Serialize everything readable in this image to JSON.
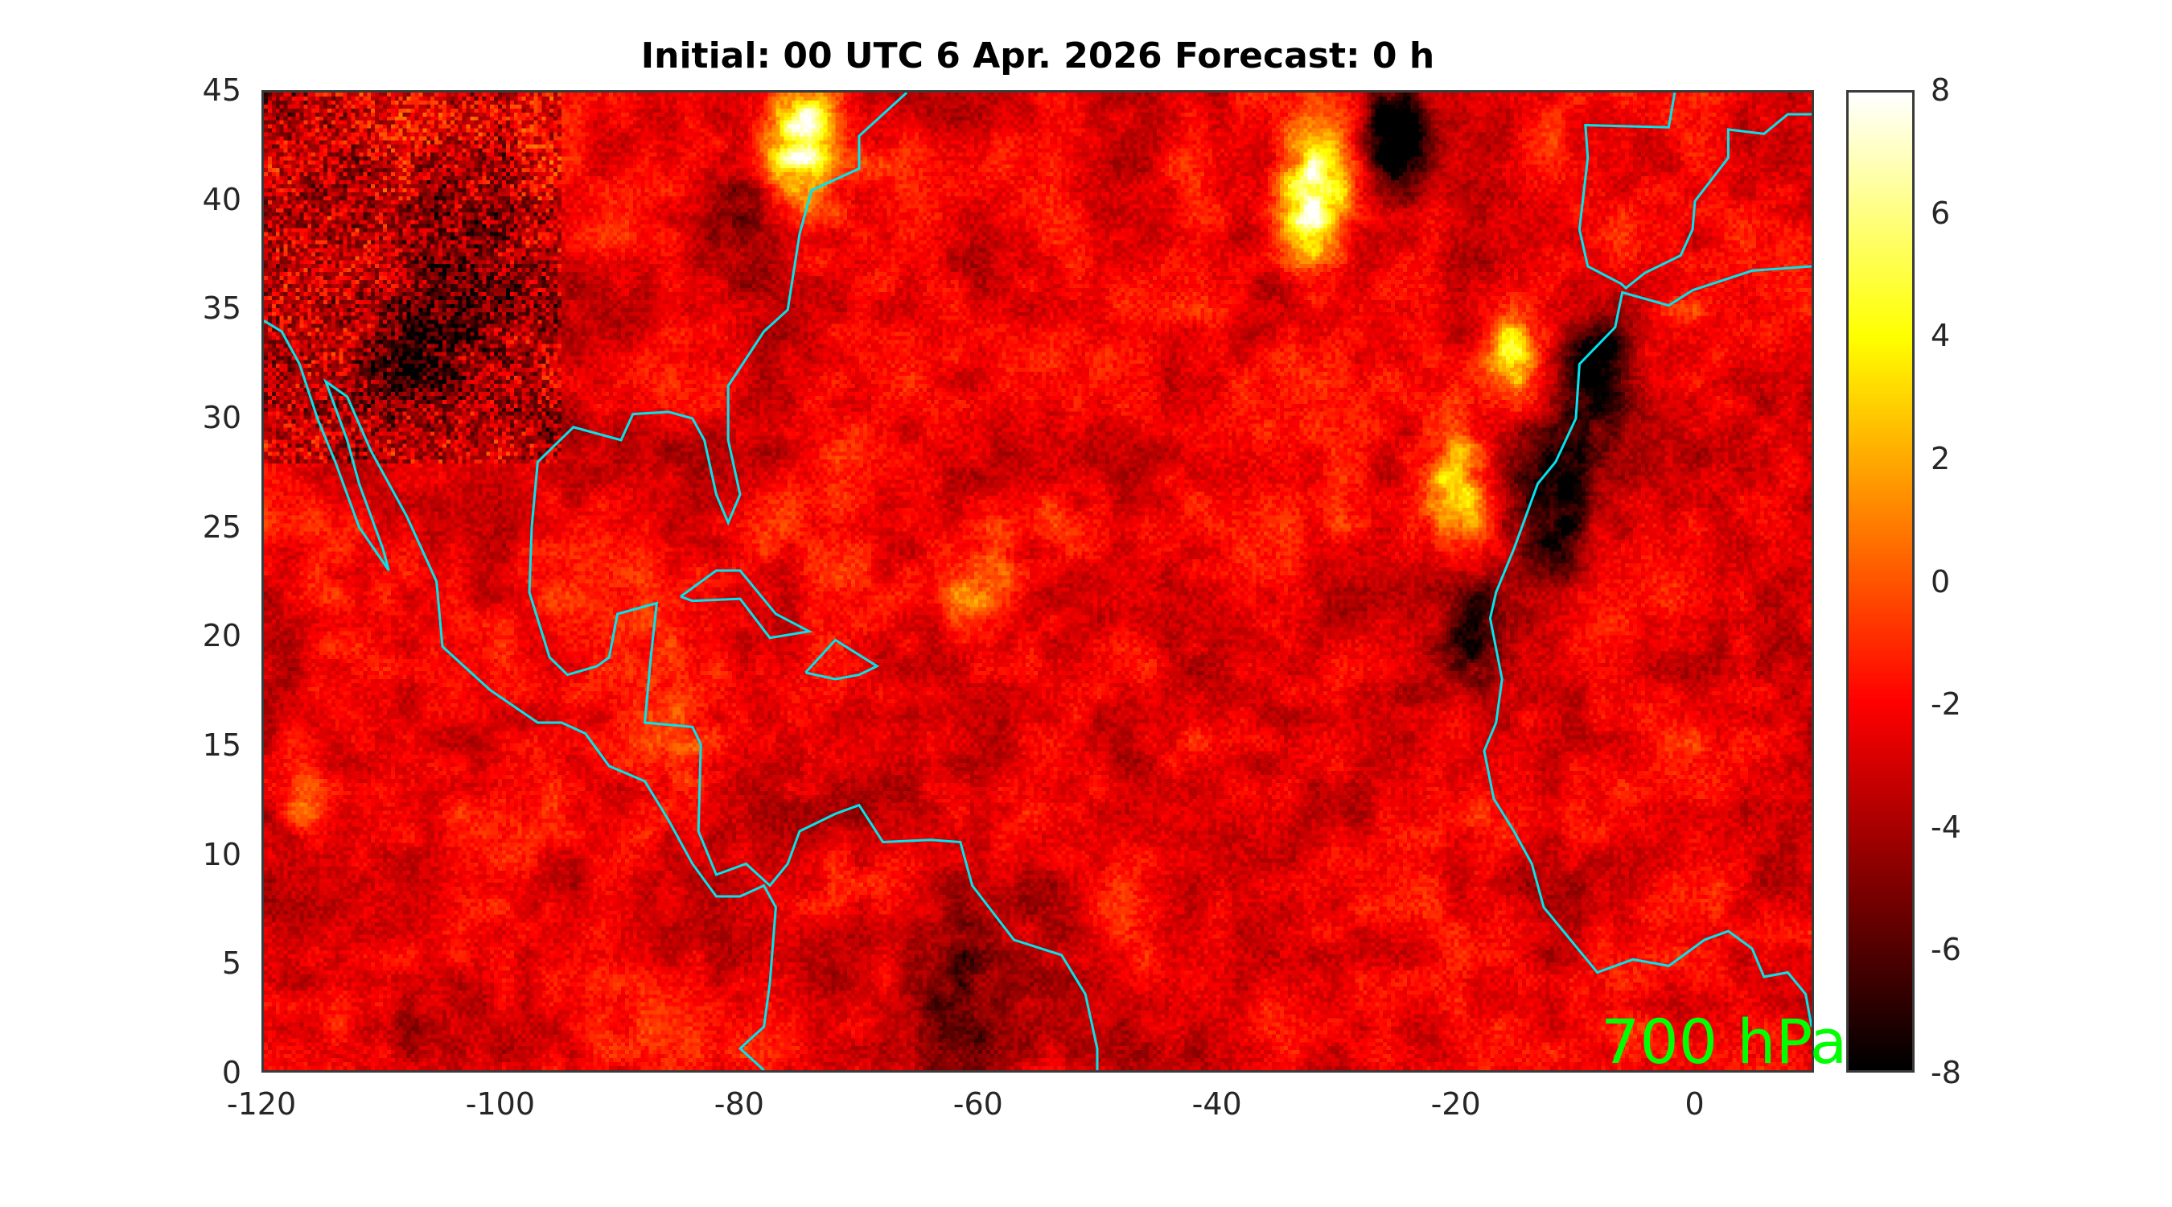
{
  "chart_data": {
    "type": "heatmap",
    "title": "Initial: 00 UTC 6 Apr. 2026 Forecast: 0 h",
    "xlabel": "",
    "ylabel": "",
    "xlim": [
      -120,
      10
    ],
    "ylim": [
      0,
      45
    ],
    "xticks": [
      -120,
      -100,
      -80,
      -60,
      -40,
      -20,
      0
    ],
    "yticks": [
      0,
      5,
      10,
      15,
      20,
      25,
      30,
      35,
      40,
      45
    ],
    "colorbar": {
      "range": [
        -8,
        8
      ],
      "ticks": [
        8,
        6,
        4,
        2,
        0,
        -2,
        -4,
        -6,
        -8
      ],
      "colormap": "hot",
      "placement": "right"
    },
    "overlay_label": "700 hPa",
    "overlay_color": "#00ff00",
    "coastline_color": "#00e5ee",
    "typical_value": -2.5
  }
}
